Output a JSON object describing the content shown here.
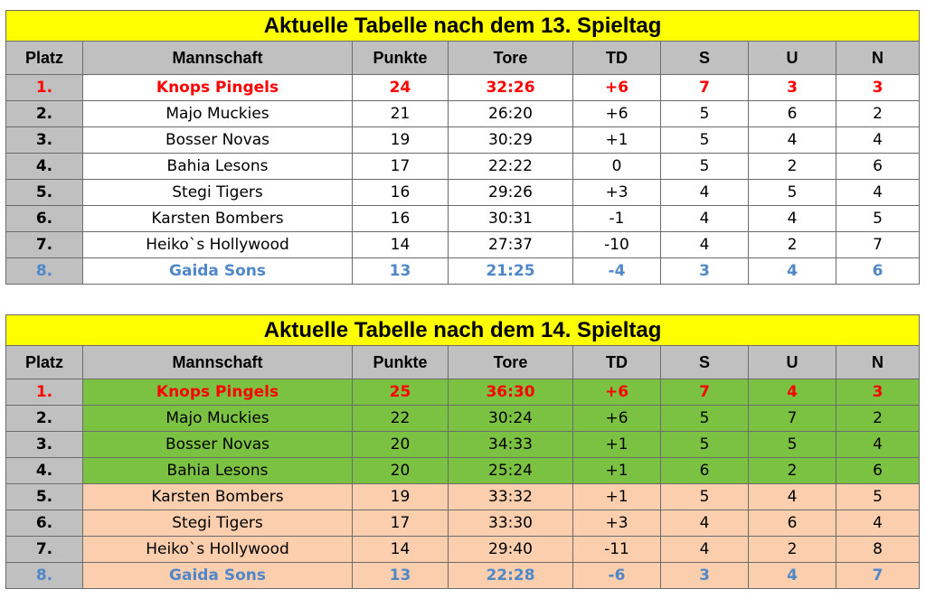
{
  "colors": {
    "title_bg": "#ffff00",
    "header_bg": "#c0c0c0",
    "leader_text": "#ff0000",
    "last_text": "#4f87c9",
    "green_row": "#7cc242",
    "peach_row": "#fbcfae"
  },
  "tables": [
    {
      "title": "Aktuelle Tabelle nach dem 13. Spieltag",
      "headers": [
        "Platz",
        "Mannschaft",
        "Punkte",
        "Tore",
        "TD",
        "S",
        "U",
        "N"
      ],
      "rows": [
        {
          "platz": "1.",
          "team": "Knops Pingels",
          "punkte": "24",
          "tore": "32:26",
          "td": "+6",
          "s": "7",
          "u": "3",
          "n": "3",
          "style": "leader",
          "fill": "white"
        },
        {
          "platz": "2.",
          "team": "Majo Muckies",
          "punkte": "21",
          "tore": "26:20",
          "td": "+6",
          "s": "5",
          "u": "6",
          "n": "2",
          "style": "normal",
          "fill": "white"
        },
        {
          "platz": "3.",
          "team": "Bosser Novas",
          "punkte": "19",
          "tore": "30:29",
          "td": "+1",
          "s": "5",
          "u": "4",
          "n": "4",
          "style": "normal",
          "fill": "white"
        },
        {
          "platz": "4.",
          "team": "Bahia Lesons",
          "punkte": "17",
          "tore": "22:22",
          "td": "0",
          "s": "5",
          "u": "2",
          "n": "6",
          "style": "normal",
          "fill": "white"
        },
        {
          "platz": "5.",
          "team": "Stegi Tigers",
          "punkte": "16",
          "tore": "29:26",
          "td": "+3",
          "s": "4",
          "u": "5",
          "n": "4",
          "style": "normal",
          "fill": "white"
        },
        {
          "platz": "6.",
          "team": "Karsten Bombers",
          "punkte": "16",
          "tore": "30:31",
          "td": "-1",
          "s": "4",
          "u": "4",
          "n": "5",
          "style": "normal",
          "fill": "white"
        },
        {
          "platz": "7.",
          "team": "Heiko`s Hollywood",
          "punkte": "14",
          "tore": "27:37",
          "td": "-10",
          "s": "4",
          "u": "2",
          "n": "7",
          "style": "normal",
          "fill": "white"
        },
        {
          "platz": "8.",
          "team": "Gaida Sons",
          "punkte": "13",
          "tore": "21:25",
          "td": "-4",
          "s": "3",
          "u": "4",
          "n": "6",
          "style": "last",
          "fill": "white"
        }
      ]
    },
    {
      "title": "Aktuelle Tabelle nach dem 14. Spieltag",
      "headers": [
        "Platz",
        "Mannschaft",
        "Punkte",
        "Tore",
        "TD",
        "S",
        "U",
        "N"
      ],
      "rows": [
        {
          "platz": "1.",
          "team": "Knops Pingels",
          "punkte": "25",
          "tore": "36:30",
          "td": "+6",
          "s": "7",
          "u": "4",
          "n": "3",
          "style": "leader",
          "fill": "green"
        },
        {
          "platz": "2.",
          "team": "Majo Muckies",
          "punkte": "22",
          "tore": "30:24",
          "td": "+6",
          "s": "5",
          "u": "7",
          "n": "2",
          "style": "normal",
          "fill": "green"
        },
        {
          "platz": "3.",
          "team": "Bosser Novas",
          "punkte": "20",
          "tore": "34:33",
          "td": "+1",
          "s": "5",
          "u": "5",
          "n": "4",
          "style": "normal",
          "fill": "green"
        },
        {
          "platz": "4.",
          "team": "Bahia Lesons",
          "punkte": "20",
          "tore": "25:24",
          "td": "+1",
          "s": "6",
          "u": "2",
          "n": "6",
          "style": "normal",
          "fill": "green"
        },
        {
          "platz": "5.",
          "team": "Karsten Bombers",
          "punkte": "19",
          "tore": "33:32",
          "td": "+1",
          "s": "5",
          "u": "4",
          "n": "5",
          "style": "normal",
          "fill": "peach"
        },
        {
          "platz": "6.",
          "team": "Stegi Tigers",
          "punkte": "17",
          "tore": "33:30",
          "td": "+3",
          "s": "4",
          "u": "6",
          "n": "4",
          "style": "normal",
          "fill": "peach"
        },
        {
          "platz": "7.",
          "team": "Heiko`s Hollywood",
          "punkte": "14",
          "tore": "29:40",
          "td": "-11",
          "s": "4",
          "u": "2",
          "n": "8",
          "style": "normal",
          "fill": "peach"
        },
        {
          "platz": "8.",
          "team": "Gaida Sons",
          "punkte": "13",
          "tore": "22:28",
          "td": "-6",
          "s": "3",
          "u": "4",
          "n": "7",
          "style": "last",
          "fill": "peach"
        }
      ]
    }
  ]
}
